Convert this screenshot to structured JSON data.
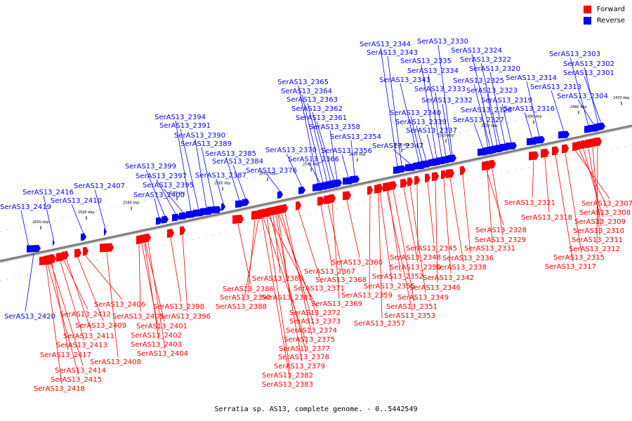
{
  "caption": "Serratia sp. AS13, complete genome. - 0..5442549",
  "legend": {
    "forward": {
      "label": "Forward",
      "color": "#ff0000"
    },
    "reverse": {
      "label": "Reverse",
      "color": "#0000ff"
    }
  },
  "colors": {
    "forward": "#ff0000",
    "reverse": "#0000ff",
    "backbone": "#808080"
  },
  "axis": {
    "unit": "kbp",
    "tick_labels": [
      "2600 kbp",
      "2590 kbp",
      "2580 kbp",
      "2570 kbp",
      "2560 kbp",
      "2550 kbp",
      "2540 kbp",
      "2530 kbp",
      "2520 kbp",
      "2510 kbp",
      "2500 kbp",
      "2490 kbp",
      "2480 kbp",
      "2470 kbp"
    ]
  },
  "reverse_genes": [
    "SerAS13_2419",
    "SerAS13_2416",
    "SerAS13_2410",
    "SerAS13_2407",
    "SerAS13_2400",
    "SerAS13_2399",
    "SerAS13_2397",
    "SerAS13_2395",
    "SerAS13_2394",
    "SerAS13_2391",
    "SerAS13_2390",
    "SerAS13_2389",
    "SerAS13_2387",
    "SerAS13_2385",
    "SerAS13_2384",
    "SerAS13_2376",
    "SerAS13_2370",
    "SerAS13_2366",
    "SerAS13_2365",
    "SerAS13_2364",
    "SerAS13_2363",
    "SerAS13_2362",
    "SerAS13_2361",
    "SerAS13_2358",
    "SerAS13_2356",
    "SerAS13_2354",
    "SerAS13_2347",
    "SerAS13_2344",
    "SerAS13_2343",
    "SerAS13_2341",
    "SerAS13_2340",
    "SerAS13_2339",
    "SerAS13_2337",
    "SerAS13_2335",
    "SerAS13_2334",
    "SerAS13_2333",
    "SerAS13_2332",
    "SerAS13_2330",
    "SerAS13_2327",
    "SerAS13_2326",
    "SerAS13_2325",
    "SerAS13_2324",
    "SerAS13_2323",
    "SerAS13_2322",
    "SerAS13_2320",
    "SerAS13_2319",
    "SerAS13_2316",
    "SerAS13_2314",
    "SerAS13_2313",
    "SerAS13_2304",
    "SerAS13_2303",
    "SerAS13_2302",
    "SerAS13_2301",
    "SerAS13_2420"
  ],
  "forward_genes": [
    "SerAS13_2412",
    "SerAS13_2411",
    "SerAS13_2413",
    "SerAS13_2417",
    "SerAS13_2414",
    "SerAS13_2415",
    "SerAS13_2418",
    "SerAS13_2406",
    "SerAS13_2409",
    "SerAS13_2408",
    "SerAS13_2405",
    "SerAS13_2401",
    "SerAS13_2402",
    "SerAS13_2403",
    "SerAS13_2404",
    "SerAS13_2398",
    "SerAS13_2396",
    "SerAS13_2386",
    "SerAS13_2392",
    "SerAS13_2388",
    "SerAS13_2380",
    "SerAS13_2381",
    "SerAS13_2371",
    "SerAS13_2367",
    "SerAS13_2368",
    "SerAS13_2369",
    "SerAS13_2372",
    "SerAS13_2373",
    "SerAS13_2374",
    "SerAS13_2375",
    "SerAS13_2377",
    "SerAS13_2378",
    "SerAS13_2379",
    "SerAS13_2382",
    "SerAS13_2383",
    "SerAS13_2360",
    "SerAS13_2352",
    "SerAS13_2355",
    "SerAS13_2359",
    "SerAS13_2349",
    "SerAS13_2351",
    "SerAS13_2353",
    "SerAS13_2357",
    "SerAS13_2350",
    "SerAS13_2348",
    "SerAS13_2345",
    "SerAS13_2346",
    "SerAS13_2342",
    "SerAS13_2338",
    "SerAS13_2336",
    "SerAS13_2331",
    "SerAS13_2329",
    "SerAS13_2328",
    "SerAS13_2321",
    "SerAS13_2318",
    "SerAS13_2307",
    "SerAS13_2308",
    "SerAS13_2309",
    "SerAS13_2310",
    "SerAS13_2311",
    "SerAS13_2312",
    "SerAS13_2315",
    "SerAS13_2317"
  ]
}
